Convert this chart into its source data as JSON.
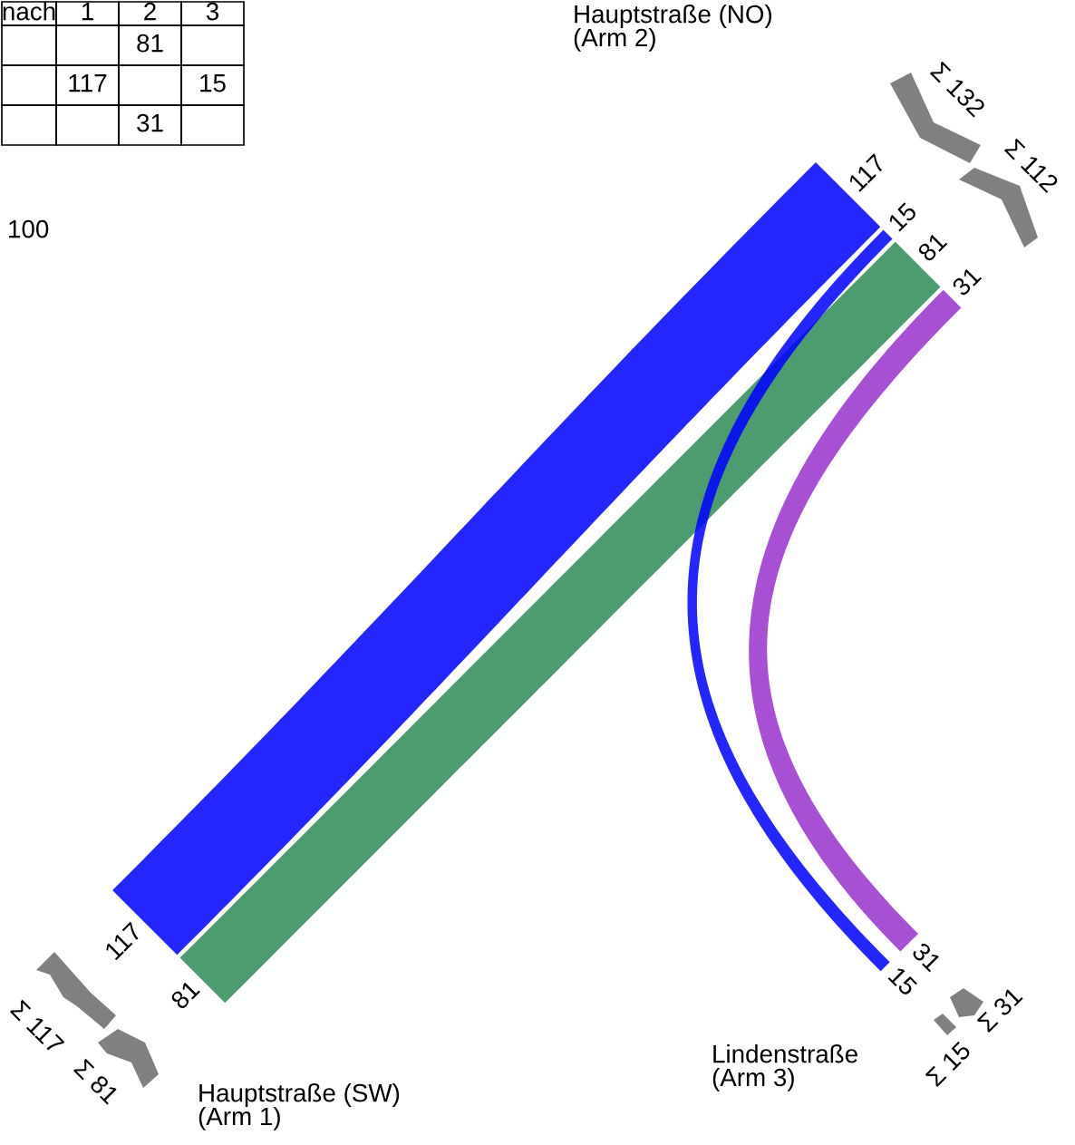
{
  "chart_data": {
    "type": "other",
    "categories": [
      "Hauptstraße (SW)\n(Arm 1)",
      "Hauptstraße (NO)\n(Arm 2)",
      "Lindenstraße\n(Arm 3)"
    ],
    "series": [
      {
        "color": "#2e8b57",
        "values": [
          null,
          81,
          null
        ]
      },
      {
        "color": "#0000ff",
        "values": [
          117,
          null,
          15
        ]
      },
      {
        "color": "#9932cc",
        "values": [
          null,
          31,
          null
        ]
      }
    ],
    "data_labels": true,
    "annotations": [
      "Σ 117",
      "Σ 81",
      "Σ 132",
      "Σ 112",
      "Σ 31",
      "Σ 15",
      "nach",
      "1",
      "2",
      "3",
      "81",
      "117",
      "15",
      "31",
      "81",
      "117",
      "15",
      "31",
      "100"
    ]
  }
}
